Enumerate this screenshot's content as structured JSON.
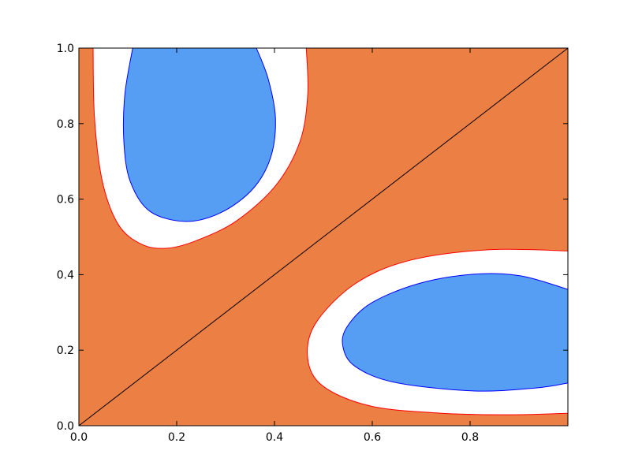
{
  "chart_data": {
    "type": "filled-contour",
    "background_color": "#ec7f44",
    "regions": [
      {
        "color": "#ffffff",
        "edge_color": "#ff0000",
        "x": [
          0.029,
          0.032,
          0.048,
          0.081,
          0.129,
          0.181,
          0.242,
          0.323,
          0.403,
          0.452,
          0.468,
          0.465
        ],
        "y": [
          1.0,
          0.814,
          0.647,
          0.532,
          0.48,
          0.47,
          0.491,
          0.543,
          0.637,
          0.752,
          0.877,
          1.0
        ]
      },
      {
        "color": "#569ef4",
        "edge_color": "#0000ff",
        "x": [
          0.11,
          0.094,
          0.092,
          0.105,
          0.145,
          0.218,
          0.29,
          0.355,
          0.392,
          0.402,
          0.387,
          0.363
        ],
        "y": [
          1.0,
          0.877,
          0.752,
          0.647,
          0.568,
          0.541,
          0.564,
          0.626,
          0.71,
          0.814,
          0.919,
          1.0
        ]
      },
      {
        "color": "#ffffff",
        "edge_color": "#ff0000",
        "x": [
          1.0,
          0.839,
          0.677,
          0.565,
          0.484,
          0.468,
          0.5,
          0.597,
          0.742,
          0.887,
          1.0
        ],
        "y": [
          0.463,
          0.466,
          0.438,
          0.376,
          0.271,
          0.177,
          0.104,
          0.052,
          0.033,
          0.029,
          0.033
        ]
      },
      {
        "color": "#569ef4",
        "edge_color": "#0000ff",
        "x": [
          1.0,
          0.903,
          0.806,
          0.694,
          0.597,
          0.548,
          0.54,
          0.565,
          0.645,
          0.806,
          0.935,
          1.0
        ],
        "y": [
          0.361,
          0.397,
          0.401,
          0.376,
          0.324,
          0.261,
          0.209,
          0.157,
          0.115,
          0.092,
          0.1,
          0.113
        ]
      }
    ],
    "line": {
      "color": "#000000",
      "x": [
        0,
        1
      ],
      "y": [
        0,
        1
      ]
    },
    "xlim": [
      0,
      1
    ],
    "ylim": [
      0,
      1
    ],
    "xticks": [
      {
        "value": 0,
        "label": "0.0"
      },
      {
        "value": 0.2,
        "label": "0.2"
      },
      {
        "value": 0.4,
        "label": "0.4"
      },
      {
        "value": 0.6,
        "label": "0.6"
      },
      {
        "value": 0.8,
        "label": "0.8"
      }
    ],
    "yticks": [
      {
        "value": 0,
        "label": "0.0"
      },
      {
        "value": 0.2,
        "label": "0.2"
      },
      {
        "value": 0.4,
        "label": "0.4"
      },
      {
        "value": 0.6,
        "label": "0.6"
      },
      {
        "value": 0.8,
        "label": "0.8"
      },
      {
        "value": 1,
        "label": "1.0"
      }
    ]
  }
}
